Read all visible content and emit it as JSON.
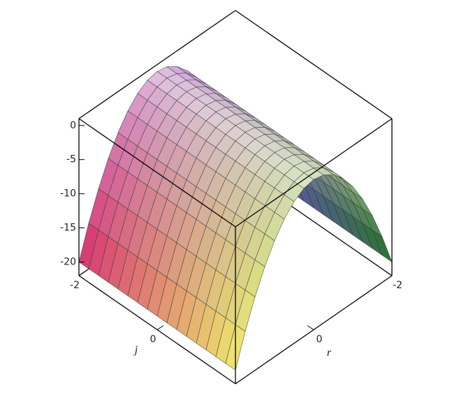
{
  "chart_data": {
    "type": "surface",
    "xlabel": "j",
    "ylabel": "r",
    "j": [
      -2,
      -1.75,
      -1.5,
      -1.25,
      -1,
      -0.75,
      -0.5,
      -0.25,
      0,
      0.25,
      0.5,
      0.75,
      1,
      1.25,
      1.5,
      1.75,
      2
    ],
    "r": [
      -2,
      -1.75,
      -1.5,
      -1.25,
      -1,
      -0.75,
      -0.5,
      -0.25,
      0,
      0.25,
      0.5,
      0.75,
      1,
      1.25,
      1.5,
      1.75,
      2
    ],
    "z": [
      [
        -20,
        -15.3125,
        -11.25,
        -7.8125,
        -5,
        -2.8125,
        -1.25,
        -0.3125,
        0,
        -0.3125,
        -1.25,
        -2.8125,
        -5,
        -7.8125,
        -11.25,
        -15.3125,
        -20
      ],
      [
        -20,
        -15.3125,
        -11.25,
        -7.8125,
        -5,
        -2.8125,
        -1.25,
        -0.3125,
        0,
        -0.3125,
        -1.25,
        -2.8125,
        -5,
        -7.8125,
        -11.25,
        -15.3125,
        -20
      ],
      [
        -20,
        -15.3125,
        -11.25,
        -7.8125,
        -5,
        -2.8125,
        -1.25,
        -0.3125,
        0,
        -0.3125,
        -1.25,
        -2.8125,
        -5,
        -7.8125,
        -11.25,
        -15.3125,
        -20
      ],
      [
        -20,
        -15.3125,
        -11.25,
        -7.8125,
        -5,
        -2.8125,
        -1.25,
        -0.3125,
        0,
        -0.3125,
        -1.25,
        -2.8125,
        -5,
        -7.8125,
        -11.25,
        -15.3125,
        -20
      ],
      [
        -20,
        -15.3125,
        -11.25,
        -7.8125,
        -5,
        -2.8125,
        -1.25,
        -0.3125,
        0,
        -0.3125,
        -1.25,
        -2.8125,
        -5,
        -7.8125,
        -11.25,
        -15.3125,
        -20
      ],
      [
        -20,
        -15.3125,
        -11.25,
        -7.8125,
        -5,
        -2.8125,
        -1.25,
        -0.3125,
        0,
        -0.3125,
        -1.25,
        -2.8125,
        -5,
        -7.8125,
        -11.25,
        -15.3125,
        -20
      ],
      [
        -20,
        -15.3125,
        -11.25,
        -7.8125,
        -5,
        -2.8125,
        -1.25,
        -0.3125,
        0,
        -0.3125,
        -1.25,
        -2.8125,
        -5,
        -7.8125,
        -11.25,
        -15.3125,
        -20
      ],
      [
        -20,
        -15.3125,
        -11.25,
        -7.8125,
        -5,
        -2.8125,
        -1.25,
        -0.3125,
        0,
        -0.3125,
        -1.25,
        -2.8125,
        -5,
        -7.8125,
        -11.25,
        -15.3125,
        -20
      ],
      [
        -20,
        -15.3125,
        -11.25,
        -7.8125,
        -5,
        -2.8125,
        -1.25,
        -0.3125,
        0,
        -0.3125,
        -1.25,
        -2.8125,
        -5,
        -7.8125,
        -11.25,
        -15.3125,
        -20
      ],
      [
        -20,
        -15.3125,
        -11.25,
        -7.8125,
        -5,
        -2.8125,
        -1.25,
        -0.3125,
        0,
        -0.3125,
        -1.25,
        -2.8125,
        -5,
        -7.8125,
        -11.25,
        -15.3125,
        -20
      ],
      [
        -20,
        -15.3125,
        -11.25,
        -7.8125,
        -5,
        -2.8125,
        -1.25,
        -0.3125,
        0,
        -0.3125,
        -1.25,
        -2.8125,
        -5,
        -7.8125,
        -11.25,
        -15.3125,
        -20
      ],
      [
        -20,
        -15.3125,
        -11.25,
        -7.8125,
        -5,
        -2.8125,
        -1.25,
        -0.3125,
        0,
        -0.3125,
        -1.25,
        -2.8125,
        -5,
        -7.8125,
        -11.25,
        -15.3125,
        -20
      ],
      [
        -20,
        -15.3125,
        -11.25,
        -7.8125,
        -5,
        -2.8125,
        -1.25,
        -0.3125,
        0,
        -0.3125,
        -1.25,
        -2.8125,
        -5,
        -7.8125,
        -11.25,
        -15.3125,
        -20
      ],
      [
        -20,
        -15.3125,
        -11.25,
        -7.8125,
        -5,
        -2.8125,
        -1.25,
        -0.3125,
        0,
        -0.3125,
        -1.25,
        -2.8125,
        -5,
        -7.8125,
        -11.25,
        -15.3125,
        -20
      ],
      [
        -20,
        -15.3125,
        -11.25,
        -7.8125,
        -5,
        -2.8125,
        -1.25,
        -0.3125,
        0,
        -0.3125,
        -1.25,
        -2.8125,
        -5,
        -7.8125,
        -11.25,
        -15.3125,
        -20
      ],
      [
        -20,
        -15.3125,
        -11.25,
        -7.8125,
        -5,
        -2.8125,
        -1.25,
        -0.3125,
        0,
        -0.3125,
        -1.25,
        -2.8125,
        -5,
        -7.8125,
        -11.25,
        -15.3125,
        -20
      ],
      [
        -20,
        -15.3125,
        -11.25,
        -7.8125,
        -5,
        -2.8125,
        -1.25,
        -0.3125,
        0,
        -0.3125,
        -1.25,
        -2.8125,
        -5,
        -7.8125,
        -11.25,
        -15.3125,
        -20
      ]
    ],
    "xlim": [
      -2,
      2
    ],
    "ylim": [
      -2,
      2
    ],
    "zlim": [
      -22,
      1
    ],
    "xticks": [
      -2,
      0
    ],
    "yticks": [
      -2,
      0
    ],
    "zticks": [
      0,
      -5,
      -10,
      -15,
      -20
    ],
    "colors": [
      "#6a3ee0",
      "#d8306a",
      "#1e6a2a",
      "#f2ea6a"
    ],
    "gridline_color": "#333333"
  }
}
